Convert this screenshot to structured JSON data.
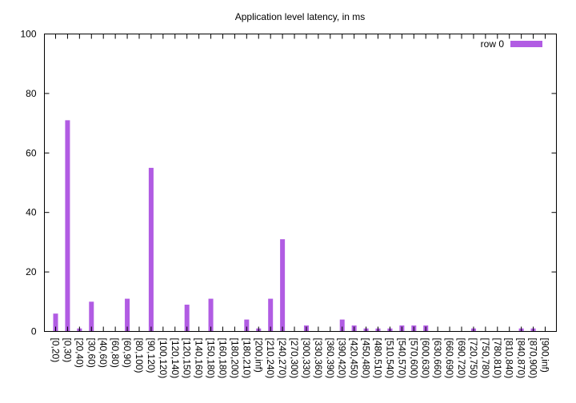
{
  "chart_data": {
    "type": "bar",
    "title": "Application level latency, in ms",
    "xlabel": "",
    "ylabel": "",
    "ylim": [
      0,
      100
    ],
    "yticks": [
      0,
      20,
      40,
      60,
      80,
      100
    ],
    "grid": false,
    "legend_position": "top-right",
    "categories": [
      "[0,20)",
      "[0,30)",
      "[20,40)",
      "[30,60)",
      "[40,60)",
      "[60,80)",
      "[60,90)",
      "[80,100)",
      "[90,120)",
      "[100,120)",
      "[120,140)",
      "[120,150)",
      "[140,160)",
      "[150,180)",
      "[160,180)",
      "[180,200)",
      "[180,210)",
      "[200,inf)",
      "[210,240)",
      "[240,270)",
      "[270,300)",
      "[300,330)",
      "[330,360)",
      "[360,390)",
      "[390,420)",
      "[420,450)",
      "[450,480)",
      "[480,510)",
      "[510,540)",
      "[540,570)",
      "[570,600)",
      "[600,630)",
      "[630,660)",
      "[660,690)",
      "[690,720)",
      "[720,750)",
      "[750,780)",
      "[780,810)",
      "[810,840)",
      "[840,870)",
      "[870,900)",
      "[900,inf)"
    ],
    "series": [
      {
        "name": "row 0",
        "color": "#b15ce3",
        "values": [
          6,
          71,
          1,
          10,
          0,
          0,
          11,
          0,
          55,
          0,
          0,
          9,
          0,
          11,
          0,
          0,
          4,
          1,
          11,
          31,
          0,
          2,
          0,
          0,
          4,
          2,
          1,
          1,
          1,
          2,
          2,
          2,
          0,
          0,
          0,
          1,
          0,
          0,
          0,
          1,
          1,
          0
        ]
      }
    ]
  }
}
